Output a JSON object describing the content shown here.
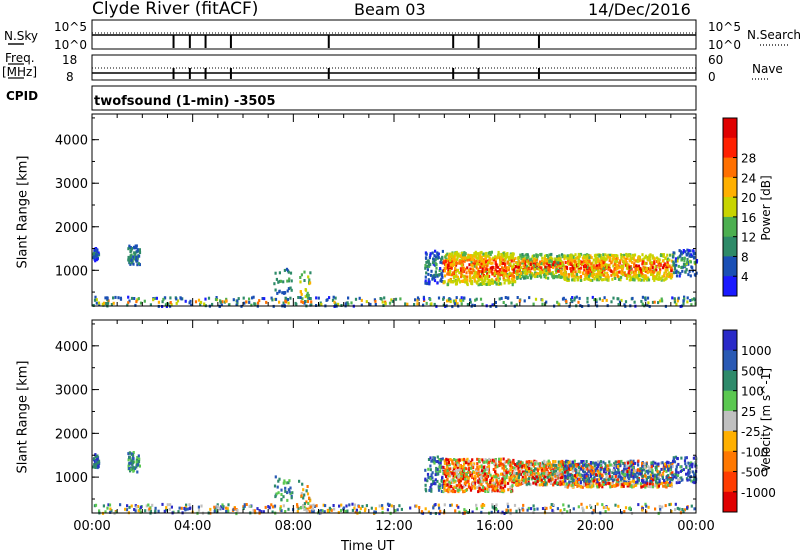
{
  "header": {
    "station": "Clyde River (fitACF)",
    "beam": "Beam 03",
    "date": "14/Dec/2016"
  },
  "panel_labels": {
    "nsky": "N.Sky",
    "nsky_max": "10^5",
    "nsky_min": "10^0",
    "nsearch": "N.Search",
    "nsearch_max": "10^5",
    "nsearch_min": "10^0",
    "freq": "Freq.",
    "freq_unit": "[MHz]",
    "freq_max": "18",
    "freq_min": "8",
    "nave": "Nave",
    "nave_max": "60",
    "nave_min": "0",
    "cpid": "CPID",
    "cpid_text": "twofsound (1-min) -3505"
  },
  "chart_data": [
    {
      "type": "heatmap",
      "name": "power",
      "ylabel": "Slant Range [km]",
      "ylim": [
        180,
        4590
      ],
      "yticks": [
        "1000",
        "2000",
        "3000",
        "4000"
      ],
      "colorbar_label": "Power [dB]",
      "colorbar_ticks": [
        "4",
        "8",
        "12",
        "16",
        "20",
        "24",
        "28"
      ],
      "colorbar_colors": [
        "#1a1aff",
        "#1a4fb5",
        "#2e8a68",
        "#4caf50",
        "#c8d400",
        "#ffb000",
        "#ff7000",
        "#ff2000",
        "#e00000"
      ]
    },
    {
      "type": "heatmap",
      "name": "velocity",
      "ylabel": "Slant Range [km]",
      "ylim": [
        180,
        4590
      ],
      "yticks": [
        "1000",
        "2000",
        "3000",
        "4000"
      ],
      "colorbar_label": "Velocity [m s^-1]",
      "colorbar_ticks": [
        "1000",
        "500",
        "100",
        "25",
        "-25",
        "-100",
        "-500",
        "-1000"
      ],
      "colorbar_colors": [
        "#2a2ac8",
        "#2a5ab4",
        "#2e8a6a",
        "#5bc850",
        "#c0c0c0",
        "#ffb000",
        "#ff7800",
        "#ff3c00",
        "#e00000"
      ]
    }
  ],
  "xaxis": {
    "ticks": [
      "00:00",
      "04:00",
      "08:00",
      "12:00",
      "16:00",
      "20:00",
      "00:00"
    ],
    "label": "Time UT"
  }
}
